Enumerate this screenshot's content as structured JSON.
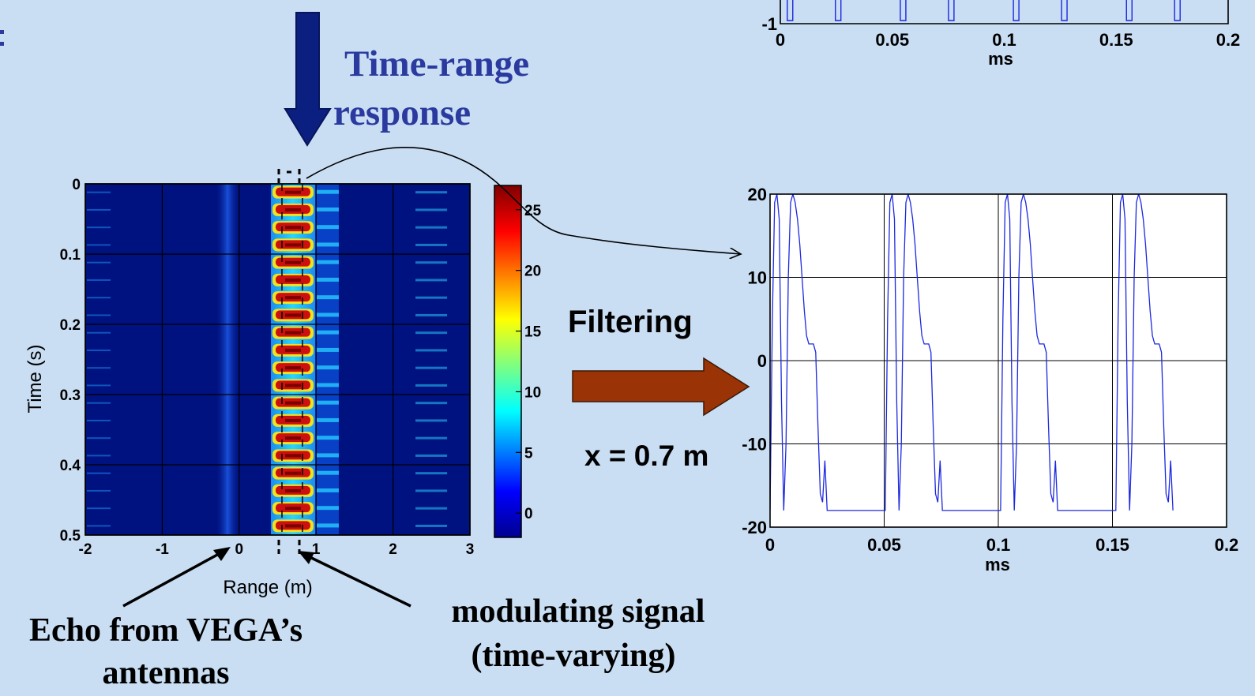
{
  "annotations": {
    "time_range_line1": "Time-range",
    "time_range_line2": "response",
    "filtering": "Filtering",
    "x_value": "x = 0.7 m",
    "echo_line1": "Echo from VEGA’s",
    "echo_line2": "antennas",
    "modulating_line1": "modulating signal",
    "modulating_line2": "(time-varying)"
  },
  "chart_data": [
    {
      "type": "heatmap",
      "xlabel": "Range (m)",
      "ylabel": "Time (s)",
      "xlim": [
        -2,
        3
      ],
      "ylim": [
        0,
        0.5
      ],
      "xticks": [
        "-2",
        "-1",
        "0",
        "1",
        "2",
        "3"
      ],
      "yticks": [
        "0",
        "0.1",
        "0.2",
        "0.3",
        "0.4",
        "0.5"
      ],
      "colorbar": {
        "range": [
          -2,
          27
        ],
        "ticks": [
          "0",
          "5",
          "10",
          "15",
          "20",
          "25"
        ]
      },
      "grid": true,
      "colors": {
        "background": "#00127f",
        "peak": "#cc1010",
        "mid": "#27c9ff",
        "low": "#0a4cd8"
      },
      "features": [
        {
          "name": "main-response",
          "range_center": 0.7,
          "period_s": 0.025,
          "peak": 25
        },
        {
          "name": "echo",
          "range_center": -0.15,
          "peak": 5
        },
        {
          "name": "side-lines",
          "range_center": 2.6,
          "peak": 8
        }
      ]
    },
    {
      "type": "line",
      "xlabel": "ms",
      "ylabel": "",
      "xlim": [
        0,
        0.2
      ],
      "ylim": [
        -20,
        20
      ],
      "xticks": [
        "0",
        "0.05",
        "0.1",
        "0.15",
        "0.2"
      ],
      "yticks": [
        "-20",
        "-10",
        "0",
        "10",
        "20"
      ],
      "grid": true,
      "series": [
        {
          "color": "#1c28e0",
          "period_ms": 0.0505,
          "x": [
            0,
            0.001,
            0.002,
            0.003,
            0.004,
            0.005,
            0.006,
            0.007,
            0.008,
            0.009,
            0.01,
            0.011,
            0.012,
            0.013,
            0.014,
            0.015,
            0.016,
            0.017,
            0.018,
            0.019,
            0.02,
            0.021,
            0.022,
            0.023,
            0.024,
            0.025
          ],
          "values": [
            -18,
            5,
            19,
            20,
            17,
            -5,
            -18,
            -10,
            10,
            19,
            20,
            19,
            17,
            14,
            10,
            6,
            3,
            2,
            2,
            2,
            1,
            -8,
            -16,
            -17,
            -12,
            -18
          ]
        }
      ]
    },
    {
      "type": "line",
      "xlabel": "ms",
      "ylabel": "",
      "xlim": [
        0,
        0.2
      ],
      "ylim": [
        -1,
        null
      ],
      "xticks": [
        "0",
        "0.05",
        "0.1",
        "0.15",
        "0.2"
      ],
      "yticks": [
        "-1"
      ],
      "grid": true,
      "series": [
        {
          "color": "#1c28e0"
        }
      ]
    }
  ]
}
